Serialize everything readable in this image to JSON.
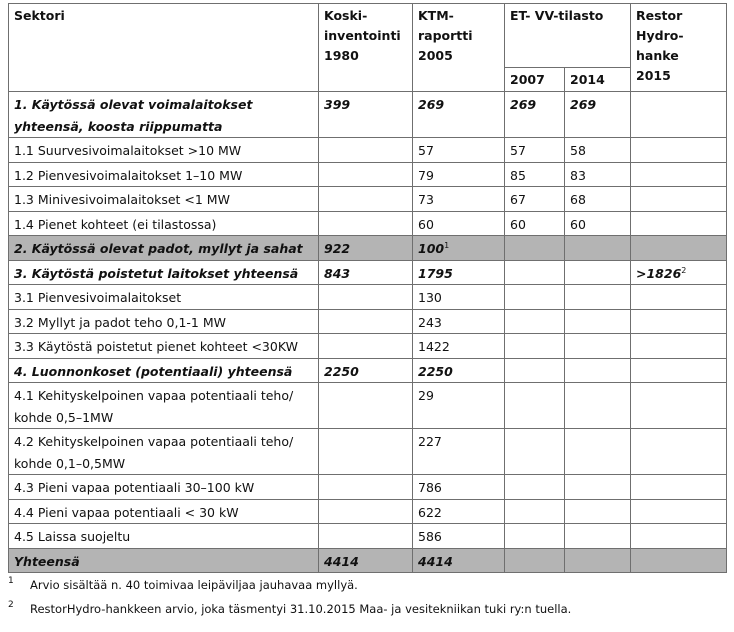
{
  "headers": {
    "sector": "Sektori",
    "koski": [
      "Koski-",
      "inventointi",
      "1980"
    ],
    "ktm": [
      "KTM-",
      "raportti",
      "2005"
    ],
    "et": "ET- VV-tilasto",
    "y2007": "2007",
    "y2014": "2014",
    "restor": [
      "Restor",
      "Hydro-",
      "hanke",
      "2015"
    ]
  },
  "rows": [
    {
      "type": "bold",
      "label": "1. Käytössä olevat voimalaitokset yhteensä, koosta riippumatta",
      "c1": "399",
      "c2": "269",
      "c3": "269",
      "c4": "269",
      "c5": ""
    },
    {
      "type": "normal",
      "label": "1.1 Suurvesivoimalaitokset >10 MW",
      "c1": "",
      "c2": "57",
      "c3": "57",
      "c4": "58",
      "c5": ""
    },
    {
      "type": "normal",
      "label": "1.2 Pienvesivoimalaitokset 1–10 MW",
      "c1": "",
      "c2": "79",
      "c3": "85",
      "c4": "83",
      "c5": ""
    },
    {
      "type": "normal",
      "label": "1.3 Minivesivoimalaitokset <1 MW",
      "c1": "",
      "c2": "73",
      "c3": "67",
      "c4": "68",
      "c5": ""
    },
    {
      "type": "normal",
      "label": "1.4 Pienet kohteet (ei tilastossa)",
      "c1": "",
      "c2": "60",
      "c3": "60",
      "c4": "60",
      "c5": ""
    },
    {
      "type": "gray",
      "label": "2. Käytössä olevat padot, myllyt ja sahat",
      "c1": "922",
      "c2": "100",
      "c2sup": "1",
      "c3": "",
      "c4": "",
      "c5": ""
    },
    {
      "type": "bold",
      "label": "3. Käytöstä poistetut laitokset yhteensä",
      "c1": "843",
      "c2": "1795",
      "c3": "",
      "c4": "",
      "c5": ">1826",
      "c5sup": "2"
    },
    {
      "type": "normal",
      "label": "3.1 Pienvesivoimalaitokset",
      "c1": "",
      "c2": "130",
      "c3": "",
      "c4": "",
      "c5": ""
    },
    {
      "type": "normal",
      "label": "3.2 Myllyt ja padot teho 0,1-1 MW",
      "c1": "",
      "c2": "243",
      "c3": "",
      "c4": "",
      "c5": ""
    },
    {
      "type": "normal",
      "label": "3.3 Käytöstä poistetut pienet kohteet <30KW",
      "c1": "",
      "c2": "1422",
      "c3": "",
      "c4": "",
      "c5": ""
    },
    {
      "type": "bold",
      "label": "4. Luonnonkoset (potentiaali) yhteensä",
      "c1": "2250",
      "c2": "2250",
      "c3": "",
      "c4": "",
      "c5": ""
    },
    {
      "type": "normal",
      "label": "4.1 Kehityskelpoinen vapaa potentiaali teho/ kohde 0,5–1MW",
      "c1": "",
      "c2": "29",
      "c3": "",
      "c4": "",
      "c5": ""
    },
    {
      "type": "normal",
      "label": "4.2 Kehityskelpoinen vapaa potentiaali teho/ kohde 0,1–0,5MW",
      "c1": "",
      "c2": "227",
      "c3": "",
      "c4": "",
      "c5": ""
    },
    {
      "type": "normal",
      "label": "4.3 Pieni vapaa potentiaali 30–100 kW",
      "c1": "",
      "c2": "786",
      "c3": "",
      "c4": "",
      "c5": ""
    },
    {
      "type": "normal",
      "label": "4.4 Pieni vapaa potentiaali < 30 kW",
      "c1": "",
      "c2": "622",
      "c3": "",
      "c4": "",
      "c5": ""
    },
    {
      "type": "normal",
      "label": "4.5 Laissa suojeltu",
      "c1": "",
      "c2": "586",
      "c3": "",
      "c4": "",
      "c5": ""
    },
    {
      "type": "gray",
      "label": "Yhteensä",
      "c1": "4414",
      "c2": "4414",
      "c3": "",
      "c4": "",
      "c5": ""
    }
  ],
  "footnotes": [
    {
      "num": "1",
      "text": "Arvio sisältää n. 40 toimivaa leipäviljaa jauhavaa myllyä."
    },
    {
      "num": "2",
      "text": "RestorHydro-hankkeen arvio, joka täsmentyi 31.10.2015 Maa- ja vesitekniikan tuki ry:n tuella."
    }
  ]
}
